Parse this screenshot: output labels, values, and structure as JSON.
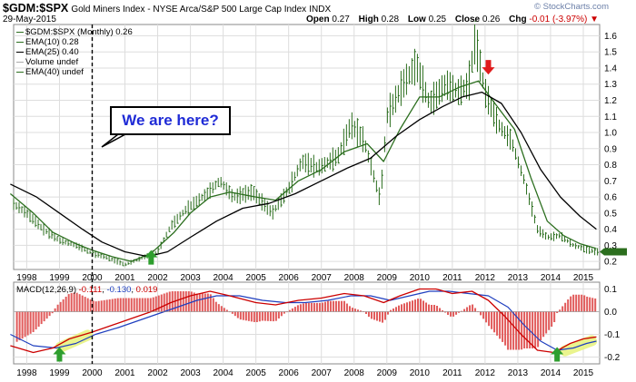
{
  "header": {
    "symbol": "$GDM:$SPX",
    "description": "Gold Miners Index - NYSE Arca/S&P 500 Large Cap Index",
    "exchange": "INDX",
    "date": "29-May-2015",
    "open_label": "Open",
    "open": "0.27",
    "high_label": "High",
    "high": "0.28",
    "low_label": "Low",
    "low": "0.25",
    "close_label": "Close",
    "close": "0.26",
    "chg_label": "Chg",
    "chg": "-0.01 (-3.97%)",
    "chg_arrow": "▼",
    "credit": "© StockCharts.com"
  },
  "legend": [
    {
      "text": "$GDM:$SPX (Monthly) 0.26",
      "color": "#2b6e1e"
    },
    {
      "text": "EMA(10) 0.28",
      "color": "#2b6e1e"
    },
    {
      "text": "EMA(25) 0.40",
      "color": "#000000"
    },
    {
      "text": "Volume undef",
      "color": "#aaaaaa"
    },
    {
      "text": "EMA(40) undef",
      "color": "#2b6e1e"
    }
  ],
  "annotation": {
    "text": "We are here?"
  },
  "macd_legend": {
    "label": "MACD(12,26,9)",
    "macd": "-0.111",
    "signal": "-0.130",
    "histogram": "0.019",
    "macd_color": "#cc0000",
    "signal_color": "#1f3fbf",
    "hist_color": "#cc0000"
  },
  "colors": {
    "price": "#2b6e1e",
    "ema10": "#2b6e1e",
    "ema25": "#000000",
    "grid": "#dddddd",
    "up_arrow": "#2e9e2e",
    "down_arrow": "#e01b1b",
    "highlight": "#e6f27a"
  },
  "chart_data": [
    {
      "type": "line",
      "title": "$GDM:$SPX (Monthly)",
      "x_ticks": [
        "1998",
        "1999",
        "2000",
        "2001",
        "2002",
        "2003",
        "2004",
        "2005",
        "2006",
        "2007",
        "2008",
        "2009",
        "2010",
        "2011",
        "2012",
        "2013",
        "2014",
        "2015"
      ],
      "y_ticks": [
        0.2,
        0.3,
        0.4,
        0.5,
        0.6,
        0.7,
        0.8,
        0.9,
        1.0,
        1.1,
        1.2,
        1.3,
        1.4,
        1.5,
        1.6
      ],
      "ylim": [
        0.15,
        1.67
      ],
      "xlim": [
        1997.6,
        2015.5
      ],
      "grid": true,
      "series": [
        {
          "name": "$GDM:$SPX (Monthly)",
          "points": [
            [
              1997.5,
              0.57
            ],
            [
              1998.0,
              0.5
            ],
            [
              1998.5,
              0.4
            ],
            [
              1999.0,
              0.33
            ],
            [
              1999.5,
              0.3
            ],
            [
              2000.0,
              0.25
            ],
            [
              2000.5,
              0.22
            ],
            [
              2001.0,
              0.18
            ],
            [
              2001.5,
              0.22
            ],
            [
              2002.0,
              0.26
            ],
            [
              2002.4,
              0.42
            ],
            [
              2002.9,
              0.53
            ],
            [
              2003.5,
              0.62
            ],
            [
              2003.9,
              0.7
            ],
            [
              2004.3,
              0.6
            ],
            [
              2004.9,
              0.63
            ],
            [
              2005.5,
              0.5
            ],
            [
              2006.0,
              0.65
            ],
            [
              2006.4,
              0.82
            ],
            [
              2006.9,
              0.78
            ],
            [
              2007.5,
              0.85
            ],
            [
              2007.9,
              1.05
            ],
            [
              2008.3,
              0.95
            ],
            [
              2008.8,
              0.58
            ],
            [
              2009.0,
              1.1
            ],
            [
              2009.5,
              1.3
            ],
            [
              2009.9,
              1.42
            ],
            [
              2010.3,
              1.18
            ],
            [
              2010.8,
              1.3
            ],
            [
              2011.2,
              1.25
            ],
            [
              2011.5,
              1.3
            ],
            [
              2011.7,
              1.58
            ],
            [
              2012.0,
              1.25
            ],
            [
              2012.4,
              1.05
            ],
            [
              2012.8,
              0.95
            ],
            [
              2013.2,
              0.7
            ],
            [
              2013.6,
              0.4
            ],
            [
              2013.9,
              0.35
            ],
            [
              2014.3,
              0.36
            ],
            [
              2014.7,
              0.3
            ],
            [
              2015.0,
              0.28
            ],
            [
              2015.4,
              0.26
            ]
          ]
        },
        {
          "name": "EMA(10)",
          "points": [
            [
              1997.5,
              0.62
            ],
            [
              1998.2,
              0.5
            ],
            [
              1998.8,
              0.38
            ],
            [
              1999.5,
              0.31
            ],
            [
              2000.0,
              0.27
            ],
            [
              2000.6,
              0.23
            ],
            [
              2001.2,
              0.2
            ],
            [
              2001.8,
              0.25
            ],
            [
              2002.5,
              0.38
            ],
            [
              2003.0,
              0.5
            ],
            [
              2003.6,
              0.6
            ],
            [
              2004.2,
              0.63
            ],
            [
              2005.0,
              0.6
            ],
            [
              2005.6,
              0.58
            ],
            [
              2006.3,
              0.7
            ],
            [
              2007.0,
              0.77
            ],
            [
              2007.7,
              0.88
            ],
            [
              2008.4,
              0.93
            ],
            [
              2008.9,
              0.82
            ],
            [
              2009.4,
              1.02
            ],
            [
              2010.0,
              1.22
            ],
            [
              2010.6,
              1.22
            ],
            [
              2011.2,
              1.28
            ],
            [
              2011.8,
              1.32
            ],
            [
              2012.3,
              1.18
            ],
            [
              2012.9,
              1.02
            ],
            [
              2013.4,
              0.72
            ],
            [
              2013.9,
              0.45
            ],
            [
              2014.4,
              0.36
            ],
            [
              2014.9,
              0.31
            ],
            [
              2015.4,
              0.28
            ]
          ]
        },
        {
          "name": "EMA(25)",
          "points": [
            [
              1997.5,
              0.68
            ],
            [
              1998.3,
              0.6
            ],
            [
              1999.0,
              0.5
            ],
            [
              1999.7,
              0.4
            ],
            [
              2000.3,
              0.32
            ],
            [
              2001.0,
              0.26
            ],
            [
              2001.7,
              0.23
            ],
            [
              2002.3,
              0.26
            ],
            [
              2003.0,
              0.35
            ],
            [
              2003.8,
              0.45
            ],
            [
              2004.6,
              0.53
            ],
            [
              2005.4,
              0.56
            ],
            [
              2006.2,
              0.62
            ],
            [
              2007.0,
              0.7
            ],
            [
              2007.8,
              0.78
            ],
            [
              2008.5,
              0.84
            ],
            [
              2009.3,
              0.98
            ],
            [
              2010.0,
              1.08
            ],
            [
              2010.7,
              1.16
            ],
            [
              2011.3,
              1.22
            ],
            [
              2011.9,
              1.25
            ],
            [
              2012.5,
              1.18
            ],
            [
              2013.1,
              1.0
            ],
            [
              2013.7,
              0.77
            ],
            [
              2014.3,
              0.6
            ],
            [
              2014.9,
              0.48
            ],
            [
              2015.4,
              0.4
            ]
          ]
        }
      ],
      "annotations": [
        {
          "text": "We are here?",
          "x": 2000.0
        },
        {
          "type": "arrow-up",
          "x": 2001.8,
          "y": 0.18
        },
        {
          "type": "arrow-down",
          "x": 2012.1,
          "y": 1.36
        }
      ]
    },
    {
      "type": "line",
      "title": "MACD(12,26,9)",
      "x_ticks": [
        "1998",
        "1999",
        "2000",
        "2001",
        "2002",
        "2003",
        "2004",
        "2005",
        "2006",
        "2007",
        "2008",
        "2009",
        "2010",
        "2011",
        "2012",
        "2013",
        "2014",
        "2015"
      ],
      "y_ticks": [
        -0.2,
        -0.1,
        0.0,
        0.1
      ],
      "ylim": [
        -0.23,
        0.13
      ],
      "xlim": [
        1997.6,
        2015.5
      ],
      "series": [
        {
          "name": "MACD",
          "points": [
            [
              1997.5,
              -0.15
            ],
            [
              1998.2,
              -0.18
            ],
            [
              1998.8,
              -0.16
            ],
            [
              1999.3,
              -0.12
            ],
            [
              2000.0,
              -0.09
            ],
            [
              2000.6,
              -0.06
            ],
            [
              2001.2,
              -0.03
            ],
            [
              2001.8,
              0.0
            ],
            [
              2002.4,
              0.04
            ],
            [
              2003.0,
              0.07
            ],
            [
              2003.6,
              0.09
            ],
            [
              2004.2,
              0.07
            ],
            [
              2005.0,
              0.04
            ],
            [
              2005.6,
              0.03
            ],
            [
              2006.3,
              0.05
            ],
            [
              2007.0,
              0.06
            ],
            [
              2007.7,
              0.08
            ],
            [
              2008.3,
              0.07
            ],
            [
              2008.9,
              0.04
            ],
            [
              2009.4,
              0.07
            ],
            [
              2010.0,
              0.1
            ],
            [
              2010.5,
              0.1
            ],
            [
              2011.0,
              0.08
            ],
            [
              2011.6,
              0.09
            ],
            [
              2012.1,
              0.05
            ],
            [
              2012.6,
              -0.02
            ],
            [
              2013.1,
              -0.1
            ],
            [
              2013.6,
              -0.17
            ],
            [
              2014.1,
              -0.18
            ],
            [
              2014.6,
              -0.14
            ],
            [
              2015.0,
              -0.12
            ],
            [
              2015.4,
              -0.111
            ]
          ]
        },
        {
          "name": "Signal",
          "points": [
            [
              1997.5,
              -0.1
            ],
            [
              1998.2,
              -0.15
            ],
            [
              1998.9,
              -0.16
            ],
            [
              1999.5,
              -0.14
            ],
            [
              2000.1,
              -0.1
            ],
            [
              2000.8,
              -0.07
            ],
            [
              2001.4,
              -0.04
            ],
            [
              2002.0,
              -0.01
            ],
            [
              2002.6,
              0.02
            ],
            [
              2003.2,
              0.05
            ],
            [
              2003.8,
              0.07
            ],
            [
              2004.5,
              0.07
            ],
            [
              2005.2,
              0.05
            ],
            [
              2005.9,
              0.04
            ],
            [
              2006.5,
              0.04
            ],
            [
              2007.2,
              0.05
            ],
            [
              2007.9,
              0.07
            ],
            [
              2008.5,
              0.07
            ],
            [
              2009.1,
              0.05
            ],
            [
              2009.7,
              0.07
            ],
            [
              2010.3,
              0.09
            ],
            [
              2010.9,
              0.09
            ],
            [
              2011.5,
              0.08
            ],
            [
              2012.1,
              0.07
            ],
            [
              2012.7,
              0.02
            ],
            [
              2013.2,
              -0.06
            ],
            [
              2013.7,
              -0.13
            ],
            [
              2014.2,
              -0.17
            ],
            [
              2014.7,
              -0.16
            ],
            [
              2015.1,
              -0.14
            ],
            [
              2015.4,
              -0.13
            ]
          ]
        }
      ],
      "annotations": [
        {
          "type": "arrow-up",
          "x": 1999.0,
          "y": -0.22
        },
        {
          "type": "arrow-up",
          "x": 2014.2,
          "y": -0.22
        }
      ]
    }
  ]
}
